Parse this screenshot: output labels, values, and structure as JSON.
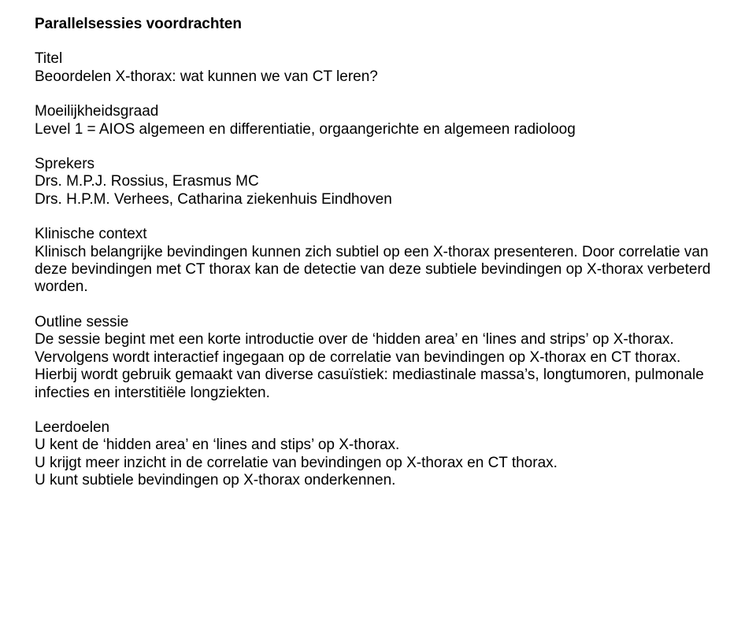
{
  "typography": {
    "font_family": "Arial, Helvetica, sans-serif",
    "font_size_pt": 14,
    "heading_weight": 700,
    "body_weight": 400,
    "line_height": 1.18,
    "text_color": "#000000",
    "background_color": "#ffffff"
  },
  "heading": "Parallelsessies voordrachten",
  "title_section": {
    "label": "Titel",
    "text": "Beoordelen X-thorax: wat kunnen we van CT leren?"
  },
  "difficulty_section": {
    "label": "Moeilijkheidsgraad",
    "text": "Level 1 = AIOS algemeen en differentiatie, orgaangerichte en algemeen radioloog"
  },
  "speakers_section": {
    "label": "Sprekers",
    "lines": [
      "Drs. M.P.J. Rossius, Erasmus MC",
      "Drs. H.P.M. Verhees, Catharina ziekenhuis Eindhoven"
    ]
  },
  "clinical_section": {
    "label": "Klinische context",
    "text": "Klinisch belangrijke bevindingen kunnen zich subtiel op een X-thorax presenteren. Door correlatie van deze bevindingen met CT thorax kan de detectie van deze subtiele bevindingen op X-thorax verbeterd worden."
  },
  "outline_section": {
    "label": "Outline sessie",
    "text": "De sessie begint met een korte introductie over de ‘hidden area’ en ‘lines and strips’ op  X-thorax. Vervolgens wordt interactief ingegaan op de correlatie van bevindingen op X-thorax en CT thorax. Hierbij wordt gebruik gemaakt van diverse casuïstiek: mediastinale massa’s, longtumoren, pulmonale infecties en interstitiële longziekten."
  },
  "learning_section": {
    "label": "Leerdoelen",
    "lines": [
      "U kent de ‘hidden area’ en ‘lines and stips’ op X-thorax.",
      "U krijgt meer inzicht in de correlatie van bevindingen op X-thorax en CT thorax.",
      "U kunt subtiele bevindingen op X-thorax onderkennen."
    ]
  }
}
